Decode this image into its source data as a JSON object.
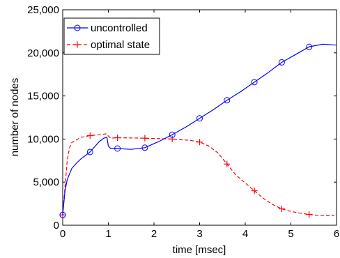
{
  "chart_data": {
    "type": "line",
    "title": "",
    "xlabel": "time [msec]",
    "ylabel": "number of nodes",
    "xlim": [
      0,
      6
    ],
    "ylim": [
      0,
      25000
    ],
    "grid": false,
    "legend_position": "top-left",
    "x_ticks": [
      0,
      1,
      2,
      3,
      4,
      5,
      6
    ],
    "x_tick_labels": [
      "0",
      "1",
      "2",
      "3",
      "4",
      "5",
      "6"
    ],
    "y_ticks": [
      0,
      5000,
      10000,
      15000,
      20000,
      25000
    ],
    "y_tick_labels": [
      "0",
      "5,000",
      "10,000",
      "15,000",
      "20,000",
      "25,000"
    ],
    "series": [
      {
        "name": "uncontrolled",
        "color": "#0000ff",
        "line_style": "solid",
        "marker": "circle",
        "x": [
          0,
          0.05,
          0.1,
          0.2,
          0.3,
          0.4,
          0.5,
          0.6,
          0.7,
          0.8,
          0.9,
          0.97,
          1.0,
          1.05,
          1.2,
          1.5,
          1.8,
          2.1,
          2.4,
          2.7,
          3.0,
          3.3,
          3.6,
          3.9,
          4.2,
          4.5,
          4.8,
          5.1,
          5.4,
          5.7,
          6.0
        ],
        "y": [
          1200,
          4000,
          5300,
          6600,
          7200,
          7700,
          8100,
          8500,
          9100,
          9700,
          10100,
          10200,
          9200,
          8900,
          8900,
          8800,
          9000,
          9700,
          10500,
          11400,
          12400,
          13400,
          14500,
          15500,
          16600,
          17700,
          18900,
          19800,
          20700,
          21000,
          20900
        ],
        "marker_x": [
          0,
          0.6,
          1.2,
          1.8,
          2.4,
          3.0,
          3.6,
          4.2,
          4.8,
          5.4
        ],
        "marker_y": [
          1200,
          8500,
          8900,
          9000,
          10500,
          12400,
          14500,
          16600,
          18900,
          20700
        ]
      },
      {
        "name": "optimal state",
        "color": "#ff0000",
        "line_style": "dashed",
        "marker": "plus",
        "x": [
          0,
          0.05,
          0.1,
          0.15,
          0.2,
          0.3,
          0.4,
          0.6,
          0.8,
          0.95,
          1.05,
          1.2,
          1.8,
          2.4,
          2.8,
          3.0,
          3.2,
          3.4,
          3.6,
          3.8,
          4.0,
          4.2,
          4.4,
          4.6,
          4.8,
          5.0,
          5.2,
          5.4,
          5.6,
          5.8,
          5.95
        ],
        "y": [
          1200,
          4500,
          7500,
          9000,
          9600,
          9900,
          10200,
          10400,
          10500,
          10600,
          10100,
          10150,
          10100,
          10000,
          9850,
          9650,
          9200,
          8400,
          7100,
          5800,
          4900,
          4000,
          3100,
          2400,
          1900,
          1600,
          1400,
          1250,
          1150,
          1100,
          1100
        ],
        "marker_x": [
          0,
          0.6,
          1.2,
          1.8,
          2.4,
          3.0,
          3.6,
          4.2,
          4.8,
          5.4
        ],
        "marker_y": [
          1200,
          10400,
          10150,
          10100,
          10000,
          9650,
          7100,
          4000,
          1900,
          1250
        ]
      }
    ]
  }
}
